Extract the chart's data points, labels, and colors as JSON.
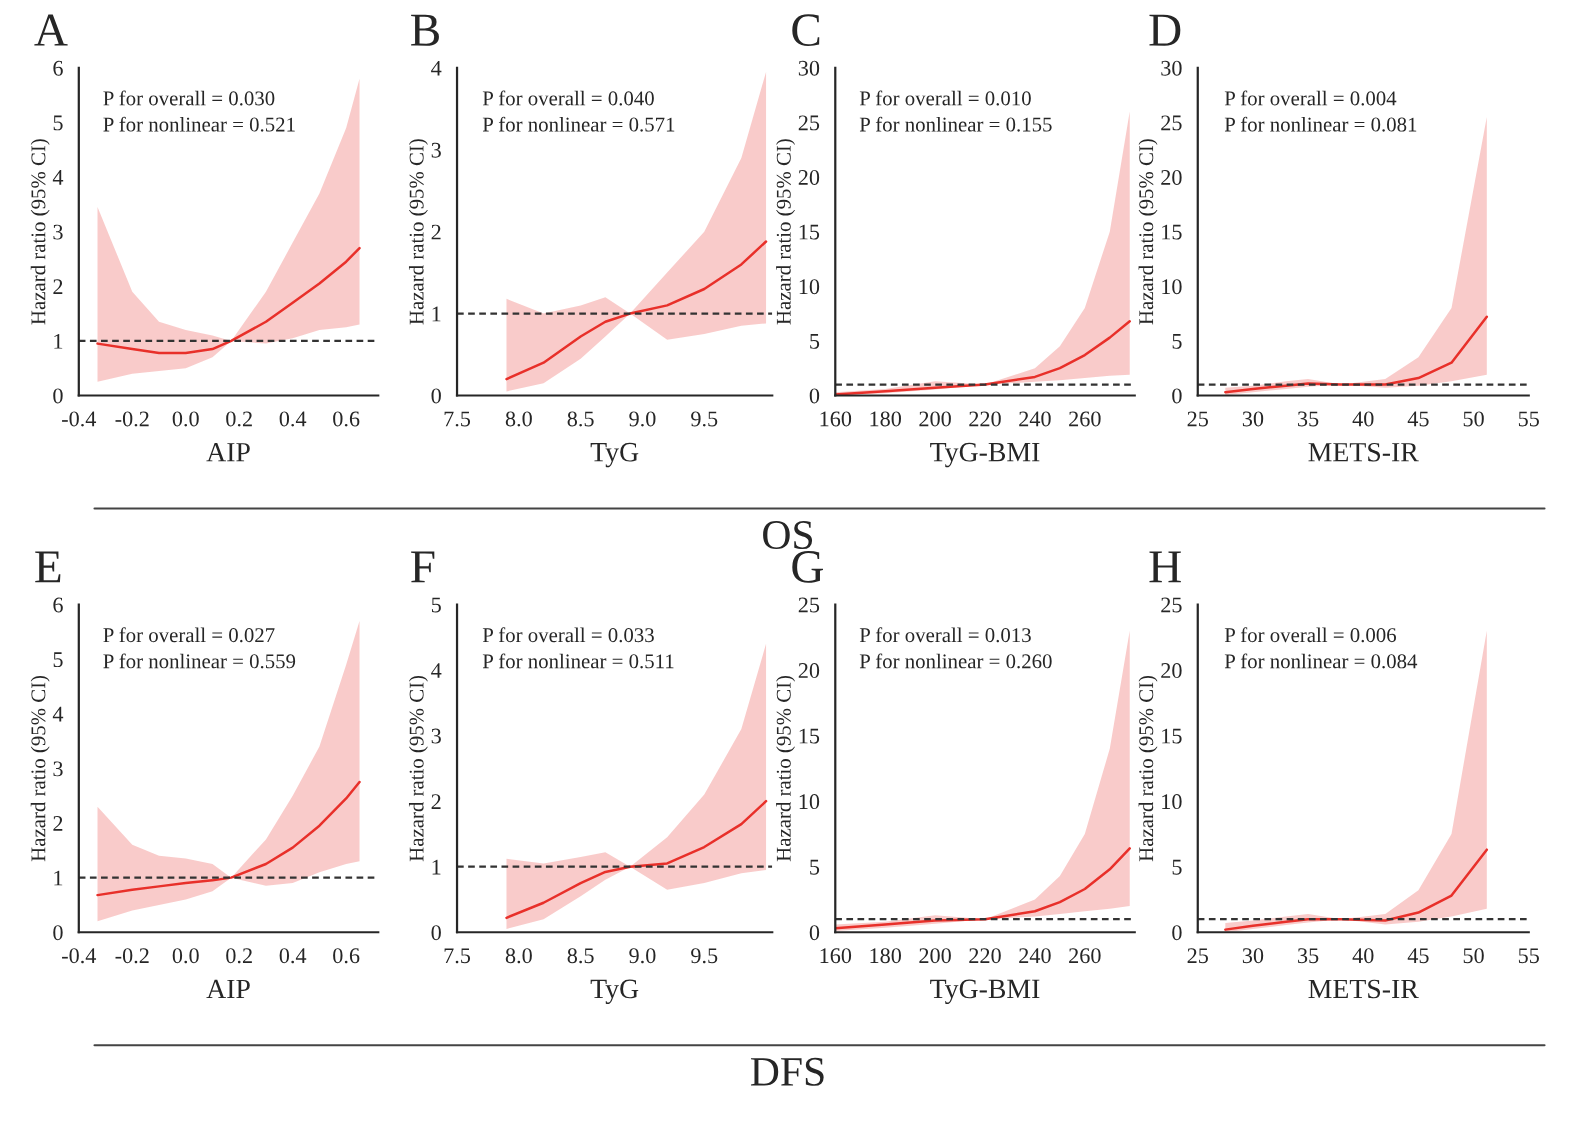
{
  "chart_data": [
    {
      "type": "line",
      "title": "A",
      "xlabel": "AIP",
      "ylabel": "Hazard ratio (95% CI)",
      "annotations": [
        "P for overall = 0.030",
        "P for nonlinear = 0.521"
      ],
      "xlim": [
        -0.4,
        0.72
      ],
      "xticks": [
        -0.4,
        -0.2,
        {
          "value": 0,
          "label": "0.0"
        },
        0.2,
        0.4,
        0.6
      ],
      "ylim": [
        0,
        6
      ],
      "yticks": [
        0,
        1,
        2,
        3,
        4,
        5,
        6
      ],
      "x": [
        -0.33,
        -0.2,
        -0.1,
        0.0,
        0.1,
        0.17,
        0.3,
        0.4,
        0.5,
        0.6,
        0.65
      ],
      "series": [
        {
          "color": "#e8302a",
          "values": [
            0.95,
            0.85,
            0.78,
            0.78,
            0.85,
            1.0,
            1.35,
            1.7,
            2.05,
            2.45,
            2.7
          ],
          "lower": [
            0.25,
            0.4,
            0.45,
            0.5,
            0.7,
            1.0,
            0.95,
            1.05,
            1.2,
            1.25,
            1.3
          ],
          "upper": [
            3.45,
            1.9,
            1.35,
            1.2,
            1.1,
            1.0,
            1.9,
            2.8,
            3.7,
            4.9,
            5.8
          ]
        }
      ],
      "ref_lines": [
        {
          "axis": "y",
          "value": 1,
          "line_style": "dashed",
          "color": "#333333"
        }
      ]
    },
    {
      "type": "line",
      "title": "B",
      "xlabel": "TyG",
      "ylabel": "Hazard ratio (95% CI)",
      "annotations": [
        "P for overall = 0.040",
        "P for nonlinear = 0.571"
      ],
      "xlim": [
        7.5,
        10.05
      ],
      "xticks": [
        7.5,
        {
          "value": 8,
          "label": "8.0"
        },
        8.5,
        {
          "value": 9,
          "label": "9.0"
        },
        9.5
      ],
      "ylim": [
        0,
        4
      ],
      "yticks": [
        0,
        1,
        2,
        3,
        4
      ],
      "x": [
        7.9,
        8.2,
        8.5,
        8.7,
        8.9,
        9.2,
        9.5,
        9.8,
        10.0
      ],
      "series": [
        {
          "color": "#e8302a",
          "values": [
            0.2,
            0.4,
            0.72,
            0.9,
            1.0,
            1.1,
            1.3,
            1.6,
            1.88
          ],
          "lower": [
            0.05,
            0.15,
            0.45,
            0.72,
            1.0,
            0.68,
            0.75,
            0.85,
            0.88
          ],
          "upper": [
            1.18,
            1.0,
            1.1,
            1.2,
            1.0,
            1.5,
            2.0,
            2.9,
            3.95
          ]
        }
      ],
      "ref_lines": [
        {
          "axis": "y",
          "value": 1,
          "line_style": "dashed",
          "color": "#333333"
        }
      ]
    },
    {
      "type": "line",
      "title": "C",
      "xlabel": "TyG-BMI",
      "ylabel": "Hazard ratio (95% CI)",
      "annotations": [
        "P for overall = 0.010",
        "P for nonlinear = 0.155"
      ],
      "xlim": [
        160,
        280
      ],
      "xticks": [
        160,
        180,
        200,
        220,
        240,
        260
      ],
      "ylim": [
        0,
        30
      ],
      "yticks": [
        0,
        5,
        10,
        15,
        20,
        25,
        30
      ],
      "x": [
        160,
        180,
        200,
        220,
        240,
        250,
        260,
        270,
        278
      ],
      "series": [
        {
          "color": "#e8302a",
          "values": [
            0.1,
            0.4,
            0.7,
            1.0,
            1.7,
            2.5,
            3.7,
            5.3,
            6.8
          ],
          "lower": [
            0.0,
            0.2,
            0.55,
            1.0,
            1.25,
            1.4,
            1.6,
            1.8,
            1.9
          ],
          "upper": [
            0.3,
            0.6,
            1.3,
            1.0,
            2.5,
            4.5,
            8,
            15,
            26
          ]
        }
      ],
      "ref_lines": [
        {
          "axis": "y",
          "value": 1,
          "line_style": "dashed",
          "color": "#333333"
        }
      ]
    },
    {
      "type": "line",
      "title": "D",
      "xlabel": "METS-IR",
      "ylabel": "Hazard ratio (95% CI)",
      "annotations": [
        "P for overall = 0.004",
        "P for nonlinear = 0.081",
        "OS"
      ],
      "xlim": [
        25,
        55
      ],
      "xticks": [
        25,
        30,
        35,
        40,
        45,
        50,
        55
      ],
      "ylim": [
        0,
        30
      ],
      "yticks": [
        0,
        5,
        10,
        15,
        20,
        25,
        30
      ],
      "x": [
        27.5,
        30,
        33,
        35,
        38,
        42,
        45,
        48,
        51.2
      ],
      "series": [
        {
          "color": "#e8302a",
          "values": [
            0.3,
            0.6,
            0.9,
            1.1,
            1.0,
            1.0,
            1.6,
            3.0,
            7.2
          ],
          "lower": [
            0.05,
            0.3,
            0.6,
            0.8,
            1.0,
            0.7,
            0.9,
            1.3,
            1.9
          ],
          "upper": [
            0.7,
            0.9,
            1.3,
            1.5,
            1.0,
            1.5,
            3.5,
            8.0,
            25.5
          ]
        }
      ],
      "ref_lines": [
        {
          "axis": "y",
          "value": 1,
          "line_style": "dashed",
          "color": "#333333"
        }
      ]
    },
    {
      "type": "line",
      "title": "E",
      "xlabel": "AIP",
      "ylabel": "Hazard ratio (95% CI)",
      "annotations": [
        "P for overall = 0.027",
        "P for nonlinear = 0.559"
      ],
      "xlim": [
        -0.4,
        0.72
      ],
      "xticks": [
        -0.4,
        -0.2,
        {
          "value": 0,
          "label": "0.0"
        },
        0.2,
        0.4,
        0.6
      ],
      "ylim": [
        0,
        6
      ],
      "yticks": [
        0,
        1,
        2,
        3,
        4,
        5,
        6
      ],
      "x": [
        -0.33,
        -0.2,
        -0.1,
        0.0,
        0.1,
        0.17,
        0.3,
        0.4,
        0.5,
        0.6,
        0.65
      ],
      "series": [
        {
          "color": "#e8302a",
          "values": [
            0.68,
            0.78,
            0.84,
            0.9,
            0.95,
            1.0,
            1.25,
            1.55,
            1.95,
            2.45,
            2.75
          ],
          "lower": [
            0.2,
            0.4,
            0.5,
            0.6,
            0.75,
            1.0,
            0.85,
            0.9,
            1.1,
            1.25,
            1.3
          ],
          "upper": [
            2.3,
            1.6,
            1.4,
            1.35,
            1.25,
            1.0,
            1.7,
            2.5,
            3.4,
            4.9,
            5.7
          ]
        }
      ],
      "ref_lines": [
        {
          "axis": "y",
          "value": 1,
          "line_style": "dashed",
          "color": "#333333"
        }
      ]
    },
    {
      "type": "line",
      "title": "F",
      "xlabel": "TyG",
      "ylabel": "Hazard ratio (95% CI)",
      "annotations": [
        "P for overall = 0.033",
        "P for nonlinear = 0.511"
      ],
      "xlim": [
        7.5,
        10.05
      ],
      "xticks": [
        7.5,
        {
          "value": 8,
          "label": "8.0"
        },
        8.5,
        {
          "value": 9,
          "label": "9.0"
        },
        9.5
      ],
      "ylim": [
        0,
        5
      ],
      "yticks": [
        0,
        1,
        2,
        3,
        4,
        5
      ],
      "x": [
        7.9,
        8.2,
        8.5,
        8.7,
        8.9,
        9.2,
        9.5,
        9.8,
        10.0
      ],
      "series": [
        {
          "color": "#e8302a",
          "values": [
            0.22,
            0.45,
            0.75,
            0.92,
            1.0,
            1.05,
            1.3,
            1.65,
            2.0
          ],
          "lower": [
            0.05,
            0.2,
            0.55,
            0.8,
            1.0,
            0.65,
            0.75,
            0.9,
            0.95
          ],
          "upper": [
            1.12,
            1.05,
            1.15,
            1.22,
            1.0,
            1.45,
            2.1,
            3.1,
            4.4
          ]
        }
      ],
      "ref_lines": [
        {
          "axis": "y",
          "value": 1,
          "line_style": "dashed",
          "color": "#333333"
        }
      ]
    },
    {
      "type": "line",
      "title": "G",
      "xlabel": "TyG-BMI",
      "ylabel": "Hazard ratio (95% CI)",
      "annotations": [
        "P for overall = 0.013",
        "P for nonlinear = 0.260"
      ],
      "xlim": [
        160,
        280
      ],
      "xticks": [
        160,
        180,
        200,
        220,
        240,
        260
      ],
      "ylim": [
        0,
        25
      ],
      "yticks": [
        0,
        5,
        10,
        15,
        20,
        25
      ],
      "x": [
        160,
        180,
        200,
        220,
        240,
        250,
        260,
        270,
        278
      ],
      "series": [
        {
          "color": "#e8302a",
          "values": [
            0.3,
            0.6,
            0.9,
            1.0,
            1.6,
            2.3,
            3.3,
            4.8,
            6.4
          ],
          "lower": [
            0.1,
            0.35,
            0.65,
            1.0,
            1.2,
            1.4,
            1.6,
            1.8,
            2.0
          ],
          "upper": [
            0.6,
            0.8,
            1.3,
            1.0,
            2.5,
            4.3,
            7.5,
            14,
            23
          ]
        }
      ],
      "ref_lines": [
        {
          "axis": "y",
          "value": 1,
          "line_style": "dashed",
          "color": "#333333"
        }
      ]
    },
    {
      "type": "line",
      "title": "H",
      "xlabel": "METS-IR",
      "ylabel": "Hazard ratio (95% CI)",
      "annotations": [
        "P for overall = 0.006",
        "P for nonlinear = 0.084",
        "DFS"
      ],
      "xlim": [
        25,
        55
      ],
      "xticks": [
        25,
        30,
        35,
        40,
        45,
        50,
        55
      ],
      "ylim": [
        0,
        25
      ],
      "yticks": [
        0,
        5,
        10,
        15,
        20,
        25
      ],
      "x": [
        27.5,
        30,
        33,
        35,
        38,
        42,
        45,
        48,
        51.2
      ],
      "series": [
        {
          "color": "#e8302a",
          "values": [
            0.2,
            0.5,
            0.8,
            1.0,
            1.0,
            0.9,
            1.5,
            2.8,
            6.3
          ],
          "lower": [
            0.0,
            0.25,
            0.55,
            0.75,
            1.0,
            0.6,
            0.8,
            1.2,
            1.8
          ],
          "upper": [
            0.7,
            0.9,
            1.2,
            1.4,
            1.0,
            1.4,
            3.2,
            7.5,
            23
          ]
        }
      ],
      "ref_lines": [
        {
          "axis": "y",
          "value": 1,
          "line_style": "dashed",
          "color": "#333333"
        }
      ]
    }
  ]
}
